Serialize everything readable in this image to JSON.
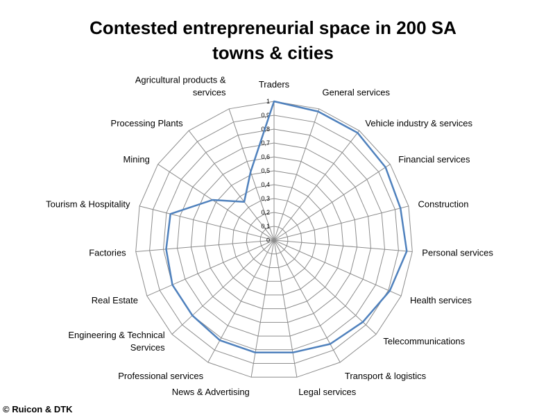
{
  "chart_data": {
    "type": "radar",
    "title_lines": [
      "Contested entrepreneurial space in 200 SA",
      "towns & cities"
    ],
    "rlim": [
      0,
      1
    ],
    "tick_labels": [
      "0",
      "0,1",
      "0,2",
      "0,3",
      "0,4",
      "0,5",
      "0,6",
      "0,7",
      "0,8",
      "0,9",
      "1"
    ],
    "grid": true,
    "categories": [
      "Traders",
      "General services",
      "Vehicle industry & services",
      "Financial services",
      "Construction",
      "Personal services",
      "Health services",
      "Telecommunications",
      "Transport & logistics",
      "Legal services",
      "News & Advertising",
      "Professional services",
      "Engineering & Technical Services",
      "Real Estate",
      "Factories",
      "Tourism & Hospitality",
      "Mining",
      "Processing Plants",
      "Agricultural products & services"
    ],
    "series": [
      {
        "values": [
          1.0,
          0.98,
          0.98,
          0.96,
          0.94,
          0.96,
          0.91,
          0.87,
          0.85,
          0.82,
          0.82,
          0.82,
          0.8,
          0.8,
          0.78,
          0.77,
          0.53,
          0.35,
          0.52
        ],
        "color": "#4F81BD"
      }
    ]
  },
  "footer": {
    "copyright": "© Ruicon & DTK"
  }
}
